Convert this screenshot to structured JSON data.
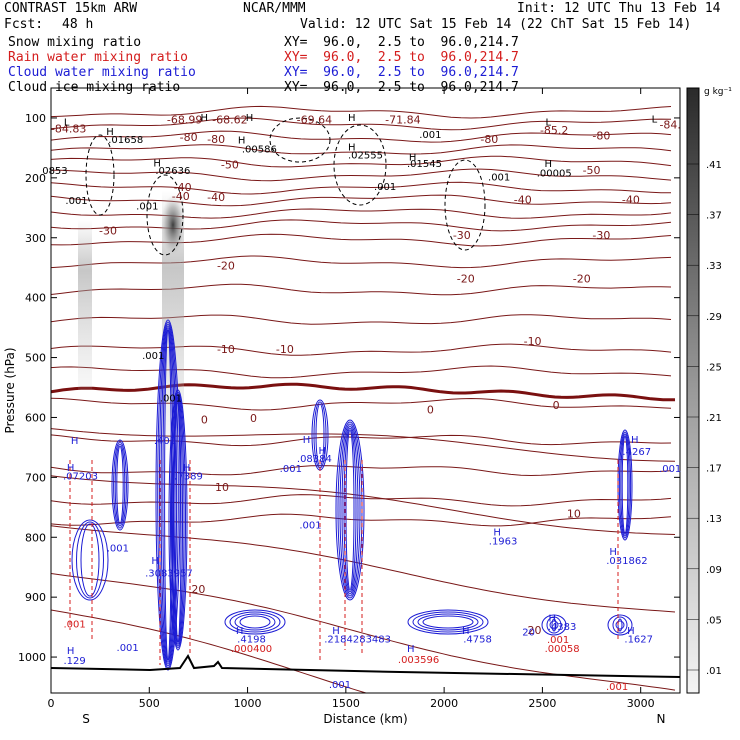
{
  "header": {
    "model": "CONTRAST 15km ARW",
    "org": "NCAR/MMM",
    "init": "Init: 12 UTC Thu 13 Feb 14",
    "fcst_label": "Fcst:",
    "fcst_value": "48 h",
    "valid": "Valid: 12 UTC Sat 15 Feb 14 (22 ChT Sat 15 Feb 14)",
    "fields": [
      {
        "name": "Snow mixing ratio",
        "xy": "XY=  96.0,  2.5 to  96.0,214.7",
        "color": "#000000"
      },
      {
        "name": "Rain water mixing ratio",
        "xy": "XY=  96.0,  2.5 to  96.0,214.7",
        "color": "#d41c1c"
      },
      {
        "name": "Cloud water mixing ratio",
        "xy": "XY=  96.0,  2.5 to  96.0,214.7",
        "color": "#1c1cd4"
      },
      {
        "name": "Cloud ice mixing ratio",
        "xy": "XY=  96.0,  2.5 to  96.0,214.7",
        "color": "#000000"
      }
    ]
  },
  "chart_data": {
    "type": "contour",
    "xlabel": "Distance (km)",
    "ylabel": "Pressure (hPa)",
    "x_ticks": [
      0,
      500,
      1000,
      1500,
      2000,
      2500,
      3000
    ],
    "y_ticks": [
      100,
      200,
      300,
      400,
      500,
      600,
      700,
      800,
      900,
      1000
    ],
    "xlim": [
      0,
      3200
    ],
    "ylim": [
      1060,
      50
    ],
    "left_end_label": "S",
    "right_end_label": "N",
    "colorbar": {
      "unit": "g kg⁻¹",
      "labels": [
        ".41",
        ".37",
        ".33",
        ".29",
        ".25",
        ".21",
        ".17",
        ".13",
        ".09",
        ".05",
        ".01"
      ],
      "values": [
        0.41,
        0.37,
        0.33,
        0.29,
        0.25,
        0.21,
        0.17,
        0.13,
        0.09,
        0.05,
        0.01
      ]
    },
    "temperature_contours": [
      {
        "label": "-84.83",
        "x": 90,
        "p": 118
      },
      {
        "label": "-68.99",
        "x": 680,
        "p": 103
      },
      {
        "label": "-68.62",
        "x": 910,
        "p": 103
      },
      {
        "label": "-69.64",
        "x": 1340,
        "p": 103
      },
      {
        "label": "-71.84",
        "x": 1790,
        "p": 103
      },
      {
        "label": "-85.2",
        "x": 2560,
        "p": 120
      },
      {
        "label": "-84.",
        "x": 3150,
        "p": 111
      },
      {
        "label": "-80",
        "x": 840,
        "p": 135
      },
      {
        "label": "-80",
        "x": 2230,
        "p": 135
      },
      {
        "label": "-80",
        "x": 2800,
        "p": 129
      },
      {
        "label": "-80",
        "x": 700,
        "p": 132
      },
      {
        "label": "-50",
        "x": 910,
        "p": 178
      },
      {
        "label": "-50",
        "x": 2750,
        "p": 187
      },
      {
        "label": "-40",
        "x": 840,
        "p": 232
      },
      {
        "label": "-40",
        "x": 2400,
        "p": 236
      },
      {
        "label": "-40",
        "x": 2950,
        "p": 236
      },
      {
        "label": "-40",
        "x": 660,
        "p": 230
      },
      {
        "label": "-40",
        "x": 670,
        "p": 215
      },
      {
        "label": "-30",
        "x": 290,
        "p": 288
      },
      {
        "label": "-30",
        "x": 2090,
        "p": 295
      },
      {
        "label": "-30",
        "x": 2800,
        "p": 295
      },
      {
        "label": "-20",
        "x": 890,
        "p": 346
      },
      {
        "label": "-20",
        "x": 2110,
        "p": 368
      },
      {
        "label": "-20",
        "x": 2700,
        "p": 368
      },
      {
        "label": "-10",
        "x": 890,
        "p": 486
      },
      {
        "label": "-10",
        "x": 1190,
        "p": 486
      },
      {
        "label": "-10",
        "x": 2450,
        "p": 472
      },
      {
        "label": "0",
        "x": 1930,
        "p": 587
      },
      {
        "label": "0",
        "x": 2570,
        "p": 579
      },
      {
        "label": "0",
        "x": 780,
        "p": 603
      },
      {
        "label": "0",
        "x": 1030,
        "p": 601
      },
      {
        "label": "10",
        "x": 870,
        "p": 716
      },
      {
        "label": "10",
        "x": 2660,
        "p": 760
      },
      {
        "label": "20",
        "x": 750,
        "p": 886
      },
      {
        "label": "20",
        "x": 2460,
        "p": 955
      }
    ],
    "annotations": [
      {
        "text": "H",
        "x": 780,
        "p": 98
      },
      {
        "text": "H",
        "x": 1010,
        "p": 98
      },
      {
        "text": "H",
        "x": 1530,
        "p": 98
      },
      {
        "text": "L",
        "x": 80,
        "p": 106
      },
      {
        "text": "L",
        "x": 2530,
        "p": 106
      },
      {
        "text": "L",
        "x": 3070,
        "p": 101
      },
      {
        "text": "H",
        "x": 300,
        "p": 122
      },
      {
        "text": ".01658",
        "x": 380,
        "p": 135
      },
      {
        "text": "H",
        "x": 970,
        "p": 136
      },
      {
        "text": ".00586",
        "x": 1060,
        "p": 151
      },
      {
        "text": ".001",
        "x": 1930,
        "p": 127
      },
      {
        "text": "H",
        "x": 1530,
        "p": 148
      },
      {
        "text": ".02555",
        "x": 1600,
        "p": 161
      },
      {
        "text": "H",
        "x": 1840,
        "p": 164
      },
      {
        "text": ".01545",
        "x": 1900,
        "p": 175
      },
      {
        "text": "H",
        "x": 2530,
        "p": 175
      },
      {
        "text": ".00005",
        "x": 2560,
        "p": 191
      },
      {
        "text": "H",
        "x": 540,
        "p": 174
      },
      {
        "text": ".02636",
        "x": 620,
        "p": 187
      },
      {
        "text": "0853",
        "x": 20,
        "p": 187
      },
      {
        "text": ".001",
        "x": 2280,
        "p": 198
      },
      {
        "text": ".001",
        "x": 1700,
        "p": 214
      },
      {
        "text": ".001",
        "x": 130,
        "p": 237
      },
      {
        "text": ".001",
        "x": 490,
        "p": 246
      },
      {
        "text": ".001",
        "x": 520,
        "p": 496
      },
      {
        "text": ".001",
        "x": 610,
        "p": 567
      },
      {
        "text": "H",
        "x": 120,
        "p": 638
      },
      {
        "text": ".401",
        "x": 580,
        "p": 638
      },
      {
        "text": "H",
        "x": 1300,
        "p": 636
      },
      {
        "text": "H",
        "x": 1380,
        "p": 654
      },
      {
        "text": ".08384",
        "x": 1340,
        "p": 668
      },
      {
        "text": "H",
        "x": 2970,
        "p": 636
      },
      {
        "text": ".4267",
        "x": 2980,
        "p": 656
      },
      {
        "text": "H",
        "x": 100,
        "p": 683
      },
      {
        "text": ".07203",
        "x": 150,
        "p": 697
      },
      {
        "text": ".001",
        "x": 1220,
        "p": 684
      },
      {
        "text": ".001",
        "x": 3150,
        "p": 684
      },
      {
        "text": "H",
        "x": 690,
        "p": 683
      },
      {
        "text": ".7389",
        "x": 700,
        "p": 697
      },
      {
        "text": "H",
        "x": 2270,
        "p": 790
      },
      {
        "text": ".1963",
        "x": 2300,
        "p": 805
      },
      {
        "text": ".001",
        "x": 1320,
        "p": 779
      },
      {
        "text": ".001",
        "x": 340,
        "p": 817
      },
      {
        "text": "H",
        "x": 2860,
        "p": 823
      },
      {
        "text": ".031862",
        "x": 2930,
        "p": 838
      },
      {
        "text": "H",
        "x": 530,
        "p": 838
      },
      {
        "text": ".3083957",
        "x": 600,
        "p": 859
      },
      {
        "text": "H",
        "x": 2550,
        "p": 934
      },
      {
        "text": ".4383",
        "x": 2600,
        "p": 948
      },
      {
        "text": "H",
        "x": 960,
        "p": 955
      },
      {
        "text": ".4198",
        "x": 1020,
        "p": 969
      },
      {
        "text": ".000400",
        "x": 1020,
        "p": 985
      },
      {
        "text": ".001",
        "x": 120,
        "p": 944
      },
      {
        "text": ".001",
        "x": 390,
        "p": 983
      },
      {
        "text": "H",
        "x": 1450,
        "p": 955
      },
      {
        "text": ".2184283483",
        "x": 1560,
        "p": 969
      },
      {
        "text": "H",
        "x": 1830,
        "p": 985
      },
      {
        "text": ".003596",
        "x": 1870,
        "p": 1003
      },
      {
        "text": "H",
        "x": 2110,
        "p": 955
      },
      {
        "text": ".4758",
        "x": 2170,
        "p": 969
      },
      {
        "text": "H",
        "x": 2950,
        "p": 955
      },
      {
        "text": ".1627",
        "x": 2990,
        "p": 969
      },
      {
        "text": ".00058",
        "x": 2600,
        "p": 985
      },
      {
        "text": "H",
        "x": 100,
        "p": 988
      },
      {
        "text": ".129",
        "x": 120,
        "p": 1005
      },
      {
        "text": ".001",
        "x": 1470,
        "p": 1045
      },
      {
        "text": ".001",
        "x": 2880,
        "p": 1048
      },
      {
        "text": ".001",
        "x": 2580,
        "p": 970
      },
      {
        "text": "20",
        "x": 2430,
        "p": 957
      }
    ]
  }
}
